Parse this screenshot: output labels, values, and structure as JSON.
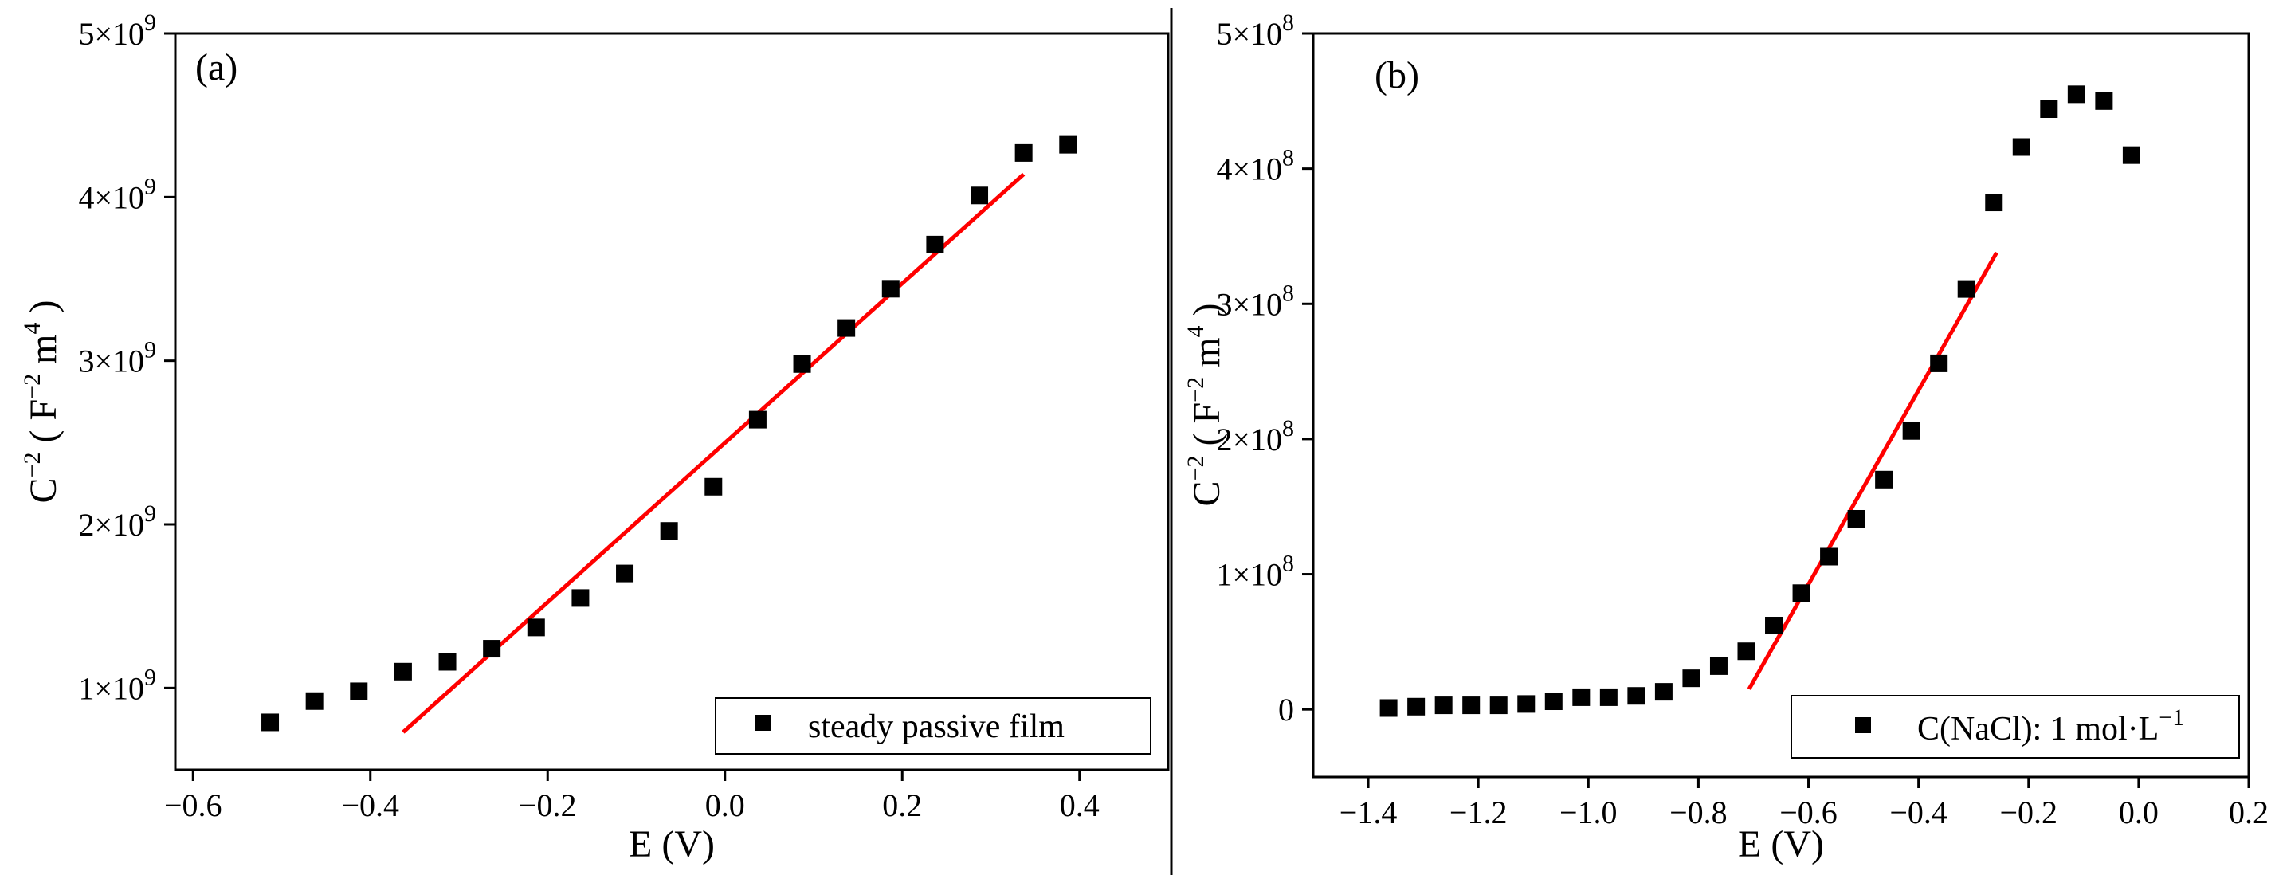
{
  "colors": {
    "marker": "#000000",
    "fit_line": "#ff0000",
    "axis": "#000000"
  },
  "chart_data": [
    {
      "type": "scatter",
      "panel_label": "(a)",
      "xlabel": "E (V)",
      "ylabel_text": {
        "base": "C",
        "exp": "−2",
        "unit_open": " ( F",
        "unit_exp1": "−2",
        "unit_mid": " m",
        "unit_exp2": "4",
        "unit_close": " )"
      },
      "xlim": [
        -0.62,
        0.5
      ],
      "ylim": [
        500000000,
        5000000000
      ],
      "x_ticks": [
        -0.6,
        -0.4,
        -0.2,
        0.0,
        0.2,
        0.4
      ],
      "x_tick_labels": [
        "−0.6",
        "−0.4",
        "−0.2",
        "0.0",
        "0.2",
        "0.4"
      ],
      "y_ticks": [
        1000000000,
        2000000000,
        3000000000,
        4000000000,
        5000000000
      ],
      "y_tick_labels": [
        {
          "mant": "1×10",
          "exp": "9"
        },
        {
          "mant": "2×10",
          "exp": "9"
        },
        {
          "mant": "3×10",
          "exp": "9"
        },
        {
          "mant": "4×10",
          "exp": "9"
        },
        {
          "mant": "5×10",
          "exp": "9"
        }
      ],
      "legend": {
        "label": "steady passive film",
        "position": "bottom-right"
      },
      "series": [
        {
          "name": "steady passive film",
          "x": [
            -0.513,
            -0.463,
            -0.413,
            -0.363,
            -0.313,
            -0.263,
            -0.213,
            -0.163,
            -0.113,
            -0.063,
            -0.013,
            0.037,
            0.087,
            0.137,
            0.187,
            0.237,
            0.287,
            0.337,
            0.387
          ],
          "y": [
            790000000,
            920000000,
            980000000,
            1100000000,
            1160000000,
            1240000000,
            1370000000,
            1550000000,
            1700000000,
            1960000000,
            2230000000,
            2640000000,
            2980000000,
            3200000000,
            3440000000,
            3710000000,
            4010000000,
            4270000000,
            4320000000
          ]
        }
      ],
      "fit_line": {
        "x": [
          -0.363,
          0.337
        ],
        "y": [
          730000000,
          4140000000
        ]
      }
    },
    {
      "type": "scatter",
      "panel_label": "(b)",
      "xlabel": "E (V)",
      "ylabel_text": {
        "base": "C",
        "exp": "−2",
        "unit_open": " ( F",
        "unit_exp1": "−2",
        "unit_mid": " m",
        "unit_exp2": "4",
        "unit_close": " )"
      },
      "xlim": [
        -1.5,
        0.2
      ],
      "ylim": [
        -50000000,
        500000000
      ],
      "x_ticks": [
        -1.4,
        -1.2,
        -1.0,
        -0.8,
        -0.6,
        -0.4,
        -0.2,
        0.0,
        0.2
      ],
      "x_tick_labels": [
        "−1.4",
        "−1.2",
        "−1.0",
        "−0.8",
        "−0.6",
        "−0.4",
        "−0.2",
        "0.0",
        "0.2"
      ],
      "y_ticks": [
        0,
        100000000,
        200000000,
        300000000,
        400000000,
        500000000
      ],
      "y_tick_labels": [
        {
          "mant": "0",
          "exp": ""
        },
        {
          "mant": "1×10",
          "exp": "8"
        },
        {
          "mant": "2×10",
          "exp": "8"
        },
        {
          "mant": "3×10",
          "exp": "8"
        },
        {
          "mant": "4×10",
          "exp": "8"
        },
        {
          "mant": "5×10",
          "exp": "8"
        }
      ],
      "legend": {
        "label_main": "C(NaCl): 1 mol·L",
        "label_exp": "−1",
        "position": "bottom-right"
      },
      "series": [
        {
          "name": "C(NaCl): 1 mol·L−1",
          "x": [
            -1.363,
            -1.313,
            -1.263,
            -1.213,
            -1.163,
            -1.113,
            -1.063,
            -1.013,
            -0.963,
            -0.913,
            -0.863,
            -0.813,
            -0.763,
            -0.713,
            -0.663,
            -0.613,
            -0.563,
            -0.513,
            -0.463,
            -0.413,
            -0.363,
            -0.313,
            -0.263,
            -0.213,
            -0.163,
            -0.113,
            -0.063,
            -0.013
          ],
          "y": [
            1000000,
            2000000,
            3000000,
            3000000,
            3000000,
            4000000,
            6000000,
            9000000,
            9000000,
            10000000,
            13000000,
            23000000,
            32000000,
            43000000,
            62000000,
            86000000,
            113000000,
            141000000,
            170000000,
            206000000,
            256000000,
            311000000,
            375000000,
            416000000,
            444000000,
            455000000,
            450000000,
            410000000
          ]
        }
      ],
      "fit_line": {
        "x": [
          -0.708,
          -0.258
        ],
        "y": [
          15000000,
          338000000
        ]
      }
    }
  ]
}
